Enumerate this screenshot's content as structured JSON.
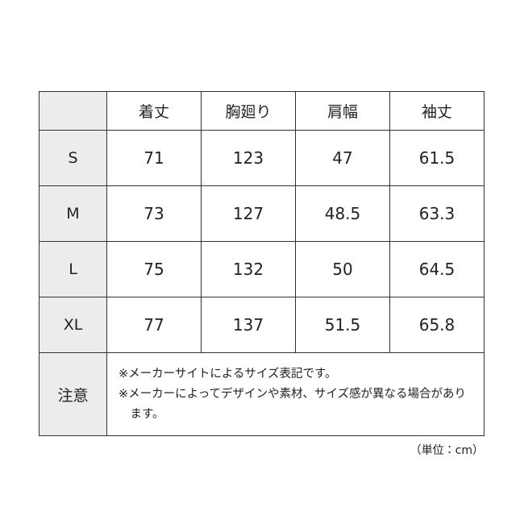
{
  "table": {
    "header": [
      "着丈",
      "胸廻り",
      "肩幅",
      "袖丈"
    ],
    "rows": [
      {
        "label": "S",
        "cells": [
          "71",
          "123",
          "47",
          "61.5"
        ]
      },
      {
        "label": "M",
        "cells": [
          "73",
          "127",
          "48.5",
          "63.3"
        ]
      },
      {
        "label": "L",
        "cells": [
          "75",
          "132",
          "50",
          "64.5"
        ]
      },
      {
        "label": "XL",
        "cells": [
          "77",
          "137",
          "51.5",
          "65.8"
        ]
      }
    ],
    "note": {
      "label": "注意",
      "lines": [
        "※メーカーサイトによるサイズ表記です。",
        "※メーカーによってデザインや素材、サイズ感が異なる場合があります。"
      ]
    }
  },
  "unit": "（単位：cm）"
}
